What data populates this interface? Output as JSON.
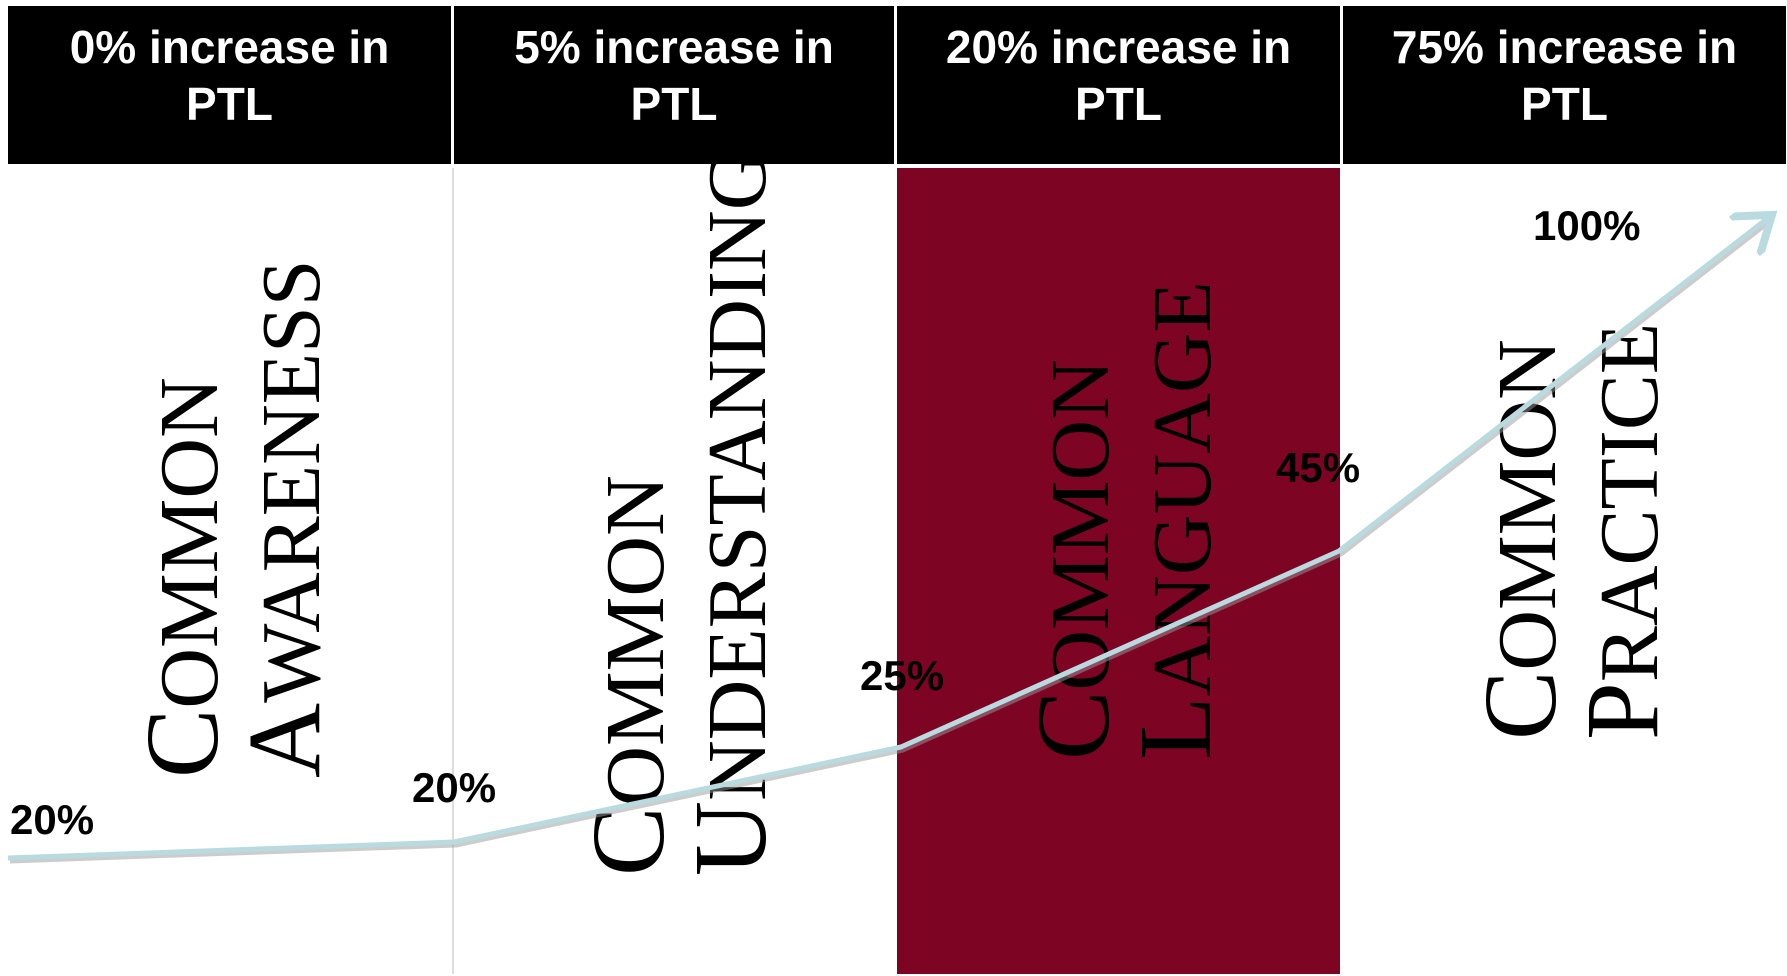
{
  "columns": [
    {
      "header_line1": "0% increase in",
      "header_line2": "PTL",
      "stage_line1_cap": "C",
      "stage_line1_rest": "OMMON",
      "stage_line2_cap": "A",
      "stage_line2_rest": "WARENESS",
      "percent_label": "20%"
    },
    {
      "header_line1": "5% increase in",
      "header_line2": "PTL",
      "stage_line1_cap": "C",
      "stage_line1_rest": "OMMON",
      "stage_line2_cap": "U",
      "stage_line2_rest": "NDERSTANDING",
      "percent_label": "20%"
    },
    {
      "header_line1": "20% increase in",
      "header_line2": "PTL",
      "stage_line1_cap": "C",
      "stage_line1_rest": "OMMON",
      "stage_line2_cap": "L",
      "stage_line2_rest": "ANGUAGE",
      "percent_label": "25%"
    },
    {
      "header_line1": "75% increase in",
      "header_line2": "PTL",
      "stage_line1_cap": "C",
      "stage_line1_rest": "OMMON",
      "stage_line2_cap": "P",
      "stage_line2_rest": "RACTICE",
      "percent_label": "45%"
    }
  ],
  "end_label": "100%",
  "colors": {
    "header_bg": "#000000",
    "header_text": "#ffffff",
    "highlight": "#7e0424",
    "curve": "#b9dbe0"
  }
}
